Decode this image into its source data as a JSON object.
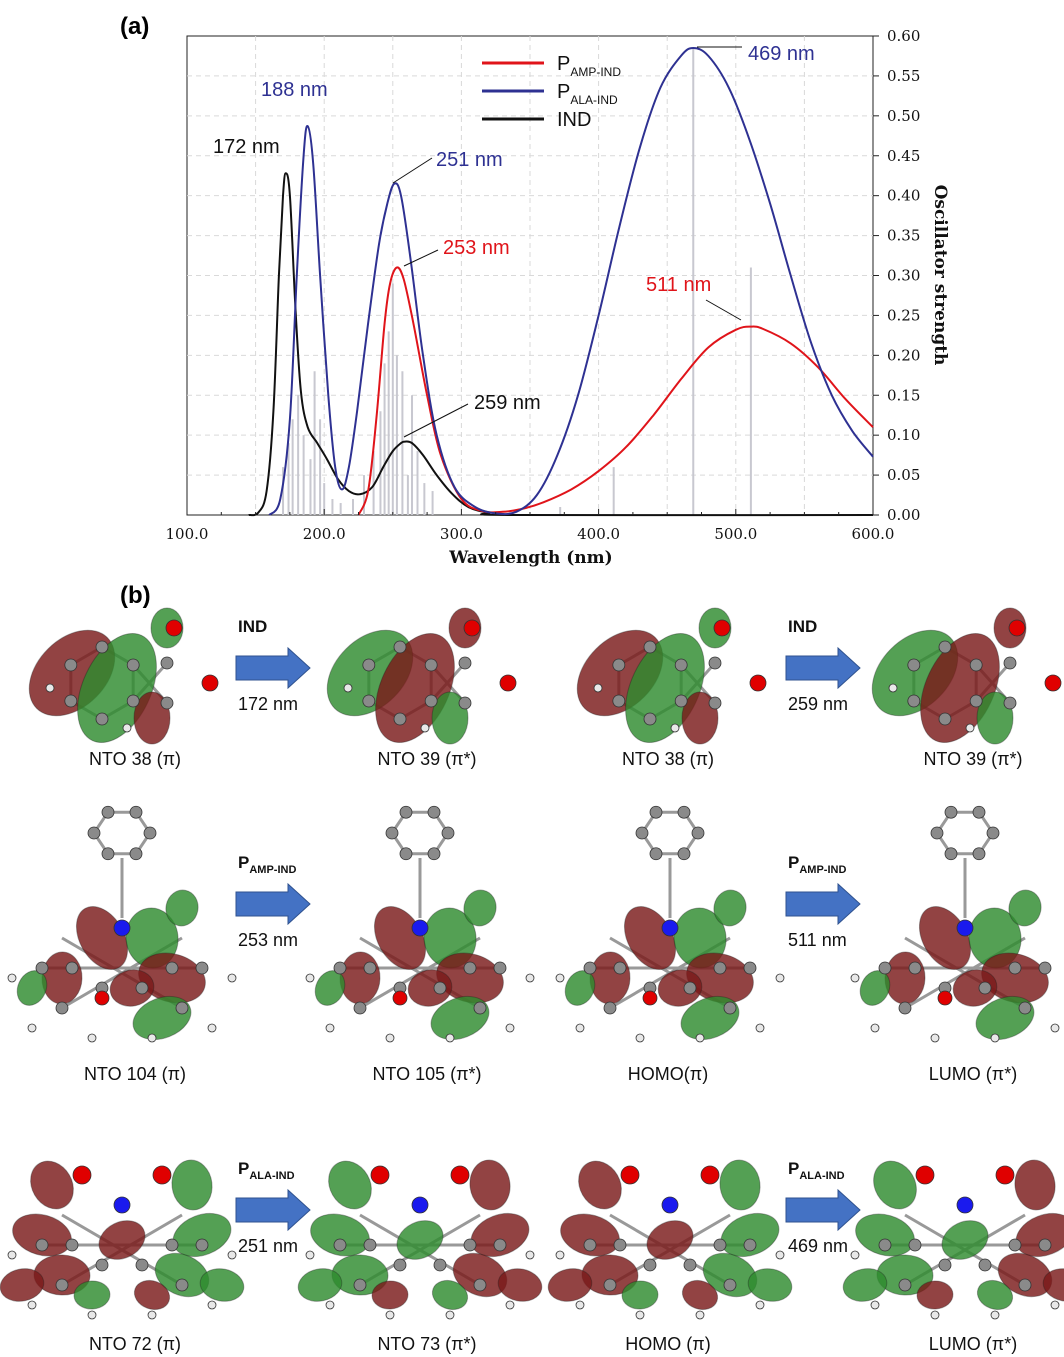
{
  "panel_a": "(a)",
  "panel_b": "(b)",
  "chart_data": {
    "type": "line",
    "xlabel": "Wavelength (nm)",
    "y2label": "Oscillator strength",
    "xlim": [
      100,
      600
    ],
    "ylim": [
      0,
      0.6
    ],
    "x_ticks": [
      "100.0",
      "200.0",
      "300.0",
      "400.0",
      "500.0",
      "600.0"
    ],
    "y_ticks": [
      "0.00",
      "0.05",
      "0.10",
      "0.15",
      "0.20",
      "0.25",
      "0.30",
      "0.35",
      "0.40",
      "0.45",
      "0.50",
      "0.55",
      "0.60"
    ],
    "grid": true,
    "legend_position": "top-center",
    "series": [
      {
        "key": "amp",
        "name_main": "P",
        "name_sub": "AMP-IND",
        "color": "#e0141a",
        "points": [
          [
            225,
            0
          ],
          [
            232,
            0.03
          ],
          [
            238,
            0.12
          ],
          [
            244,
            0.24
          ],
          [
            248,
            0.29
          ],
          [
            253,
            0.31
          ],
          [
            258,
            0.295
          ],
          [
            265,
            0.24
          ],
          [
            275,
            0.15
          ],
          [
            285,
            0.075
          ],
          [
            300,
            0.02
          ],
          [
            315,
            0.005
          ],
          [
            330,
            0.004
          ],
          [
            345,
            0.008
          ],
          [
            360,
            0.016
          ],
          [
            380,
            0.032
          ],
          [
            400,
            0.055
          ],
          [
            420,
            0.085
          ],
          [
            440,
            0.125
          ],
          [
            460,
            0.17
          ],
          [
            480,
            0.21
          ],
          [
            500,
            0.232
          ],
          [
            511,
            0.236
          ],
          [
            520,
            0.233
          ],
          [
            540,
            0.215
          ],
          [
            560,
            0.185
          ],
          [
            580,
            0.145
          ],
          [
            600,
            0.11
          ]
        ]
      },
      {
        "key": "ala",
        "name_main": "P",
        "name_sub": "ALA-IND",
        "color": "#2e3192",
        "points": [
          [
            160,
            0
          ],
          [
            168,
            0.02
          ],
          [
            175,
            0.12
          ],
          [
            180,
            0.3
          ],
          [
            185,
            0.45
          ],
          [
            188,
            0.487
          ],
          [
            192,
            0.44
          ],
          [
            197,
            0.3
          ],
          [
            203,
            0.15
          ],
          [
            208,
            0.06
          ],
          [
            213,
            0.032
          ],
          [
            218,
            0.06
          ],
          [
            224,
            0.13
          ],
          [
            232,
            0.24
          ],
          [
            240,
            0.34
          ],
          [
            246,
            0.39
          ],
          [
            251,
            0.415
          ],
          [
            256,
            0.4
          ],
          [
            263,
            0.32
          ],
          [
            272,
            0.2
          ],
          [
            282,
            0.1
          ],
          [
            295,
            0.035
          ],
          [
            310,
            0.01
          ],
          [
            325,
            0.002
          ],
          [
            340,
            0.004
          ],
          [
            355,
            0.025
          ],
          [
            370,
            0.075
          ],
          [
            385,
            0.15
          ],
          [
            400,
            0.25
          ],
          [
            415,
            0.36
          ],
          [
            430,
            0.46
          ],
          [
            445,
            0.535
          ],
          [
            460,
            0.575
          ],
          [
            469,
            0.585
          ],
          [
            480,
            0.575
          ],
          [
            495,
            0.535
          ],
          [
            510,
            0.47
          ],
          [
            525,
            0.39
          ],
          [
            540,
            0.3
          ],
          [
            555,
            0.215
          ],
          [
            570,
            0.15
          ],
          [
            585,
            0.105
          ],
          [
            600,
            0.073
          ]
        ]
      },
      {
        "key": "ind",
        "name_main": "IND",
        "name_sub": "",
        "color": "#111111",
        "points": [
          [
            145,
            0
          ],
          [
            152,
            0.003
          ],
          [
            158,
            0.03
          ],
          [
            163,
            0.13
          ],
          [
            167,
            0.3
          ],
          [
            170,
            0.4
          ],
          [
            172,
            0.428
          ],
          [
            175,
            0.4
          ],
          [
            179,
            0.26
          ],
          [
            183,
            0.155
          ],
          [
            188,
            0.11
          ],
          [
            195,
            0.09
          ],
          [
            202,
            0.07
          ],
          [
            210,
            0.045
          ],
          [
            218,
            0.03
          ],
          [
            226,
            0.026
          ],
          [
            235,
            0.035
          ],
          [
            243,
            0.06
          ],
          [
            250,
            0.08
          ],
          [
            256,
            0.09
          ],
          [
            259,
            0.092
          ],
          [
            264,
            0.09
          ],
          [
            272,
            0.075
          ],
          [
            282,
            0.05
          ],
          [
            293,
            0.027
          ],
          [
            305,
            0.01
          ],
          [
            320,
            0.003
          ],
          [
            340,
            0
          ],
          [
            600,
            0
          ]
        ]
      }
    ],
    "sticks": [
      [
        170,
        0.06
      ],
      [
        174,
        0.09
      ],
      [
        177,
        0.12
      ],
      [
        181,
        0.15
      ],
      [
        185,
        0.1
      ],
      [
        190,
        0.07
      ],
      [
        193,
        0.18
      ],
      [
        197,
        0.12
      ],
      [
        200,
        0.04
      ],
      [
        206,
        0.02
      ],
      [
        212,
        0.015
      ],
      [
        221,
        0.02
      ],
      [
        229,
        0.05
      ],
      [
        236,
        0.08
      ],
      [
        241,
        0.13
      ],
      [
        244,
        0.19
      ],
      [
        247,
        0.23
      ],
      [
        250,
        0.29
      ],
      [
        253,
        0.2
      ],
      [
        257,
        0.18
      ],
      [
        261,
        0.05
      ],
      [
        264,
        0.15
      ],
      [
        268,
        0.08
      ],
      [
        273,
        0.04
      ],
      [
        279,
        0.03
      ],
      [
        372,
        0.01
      ],
      [
        411,
        0.06
      ],
      [
        469,
        0.585
      ],
      [
        511,
        0.31
      ]
    ],
    "annotations": [
      {
        "text": "469 nm",
        "color": "#2e3192"
      },
      {
        "text": "188 nm",
        "color": "#2e3192"
      },
      {
        "text": "172 nm",
        "color": "#111111"
      },
      {
        "text": "251 nm",
        "color": "#2e3192"
      },
      {
        "text": "253 nm",
        "color": "#e0141a"
      },
      {
        "text": "511 nm",
        "color": "#e0141a"
      },
      {
        "text": "259 nm",
        "color": "#111111"
      }
    ]
  },
  "panel_b_content": {
    "rows": [
      {
        "left_from": "NTO 38 (π)",
        "left_to": "NTO 39 (π*)",
        "left_arrow_main": "IND",
        "left_arrow_sub": "",
        "left_nm": "172 nm",
        "right_from": "NTO 38 (π)",
        "right_to": "NTO 39 (π*)",
        "right_arrow_main": "IND",
        "right_arrow_sub": "",
        "right_nm": "259 nm"
      },
      {
        "left_from": "NTO 104 (π)",
        "left_to": "NTO 105 (π*)",
        "left_arrow_main": "P",
        "left_arrow_sub": "AMP-IND",
        "left_nm": "253 nm",
        "right_from": "HOMO(π)",
        "right_to": "LUMO (π*)",
        "right_arrow_main": "P",
        "right_arrow_sub": "AMP-IND",
        "right_nm": "511 nm"
      },
      {
        "left_from": "NTO 72 (π)",
        "left_to": "NTO 73 (π*)",
        "left_arrow_main": "P",
        "left_arrow_sub": "ALA-IND",
        "left_nm": "251 nm",
        "right_from": "HOMO (π)",
        "right_to": "LUMO (π*)",
        "right_arrow_main": "P",
        "right_arrow_sub": "ALA-IND",
        "right_nm": "469 nm"
      }
    ],
    "orbital_colors": {
      "positive": "#7a1a1a",
      "negative": "#2e8b2e",
      "oxygen": "#e00000",
      "nitrogen": "#1a1aee",
      "carbon": "#8a8a8a",
      "hydrogen": "#e8e8e8",
      "arrow": "#4472c4"
    }
  }
}
